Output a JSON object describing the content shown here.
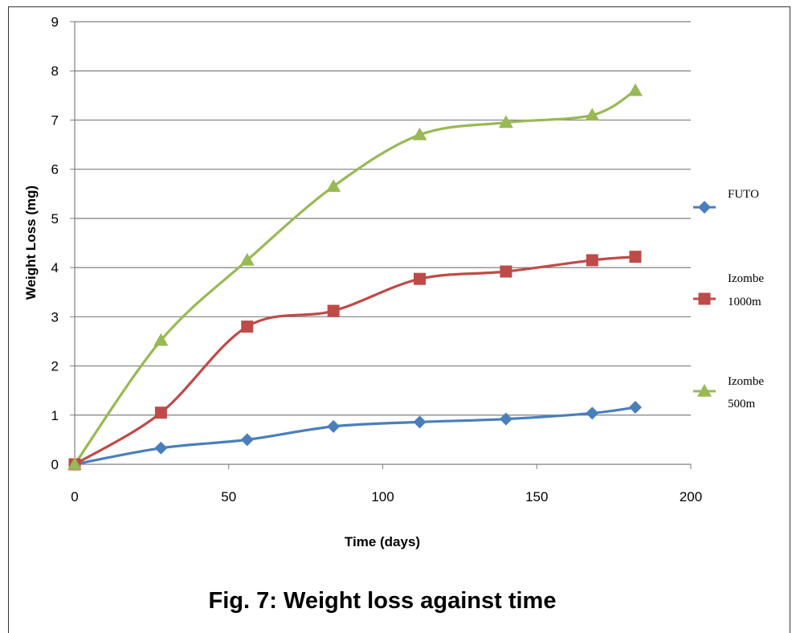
{
  "chart_data": {
    "type": "line",
    "caption": "Fig. 7: Weight loss against time",
    "xlabel": "Time (days)",
    "ylabel": "Weight Loss (mg)",
    "xlim": [
      0,
      200
    ],
    "ylim": [
      0,
      9
    ],
    "x_ticks": [
      "0",
      "50",
      "100",
      "150",
      "200"
    ],
    "y_ticks": [
      "0",
      "1",
      "2",
      "3",
      "4",
      "5",
      "6",
      "7",
      "8",
      "9"
    ],
    "grid": "horizontal",
    "legend_position": "right",
    "x": [
      0,
      28,
      56,
      84,
      112,
      140,
      168,
      182
    ],
    "series": [
      {
        "name": "FUTO",
        "marker": "diamond",
        "color": "#4A7EBB",
        "values": [
          0,
          0.33,
          0.5,
          0.77,
          0.86,
          0.92,
          1.04,
          1.16
        ]
      },
      {
        "name": "Izombe 1000m",
        "name_lines": [
          "Izombe",
          "1000m"
        ],
        "marker": "square",
        "color": "#BE4B48",
        "values": [
          0,
          1.05,
          2.8,
          3.12,
          3.77,
          3.92,
          4.15,
          4.22
        ]
      },
      {
        "name": "Izombe 500m",
        "name_lines": [
          "Izombe",
          "500m"
        ],
        "marker": "triangle",
        "color": "#98B954",
        "values": [
          0,
          2.52,
          4.15,
          5.65,
          6.7,
          6.95,
          7.1,
          7.6
        ]
      }
    ]
  }
}
